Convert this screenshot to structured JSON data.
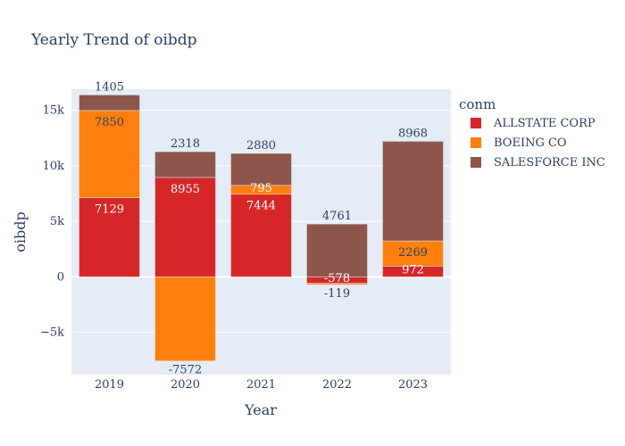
{
  "chart_data": {
    "type": "bar",
    "barmode": "relative",
    "title": "Yearly Trend of oibdp",
    "xlabel": "Year",
    "ylabel": "oibdp",
    "categories": [
      "2019",
      "2020",
      "2021",
      "2022",
      "2023"
    ],
    "ylim": [
      -8800,
      16900
    ],
    "yticks": [
      -5000,
      0,
      5000,
      10000,
      15000
    ],
    "ytick_labels": [
      "−5k",
      "0",
      "5k",
      "10k",
      "15k"
    ],
    "grid": true,
    "legend": {
      "title": "conm",
      "position": "right"
    },
    "series": [
      {
        "name": "ALLSTATE CORP",
        "color": "#d62728",
        "values": [
          7129,
          8955,
          7444,
          -578,
          972
        ],
        "labels": [
          "7129",
          "8955",
          "7444",
          "-578",
          "972"
        ]
      },
      {
        "name": "BOEING CO",
        "color": "#ff7f0e",
        "values": [
          7850,
          -7572,
          795,
          -119,
          2269
        ],
        "labels": [
          "7850",
          "-7572",
          "795",
          "-119",
          "2269"
        ]
      },
      {
        "name": "SALESFORCE INC",
        "color": "#8c564b",
        "values": [
          1405,
          2318,
          2880,
          4761,
          8968
        ],
        "labels": [
          "1405",
          "2318",
          "2880",
          "4761",
          "8968"
        ]
      }
    ]
  }
}
